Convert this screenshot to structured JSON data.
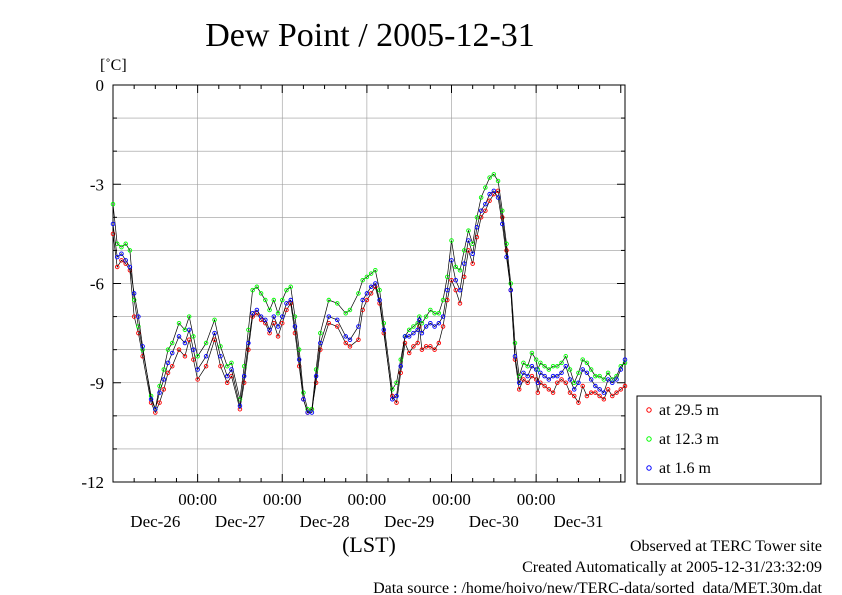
{
  "chart_data": {
    "type": "line",
    "title": "Dew Point / 2005-12-31",
    "ylabel": "[˚C]",
    "xlabel": "(LST)",
    "ylim": [
      -12,
      0
    ],
    "yticks": [
      0,
      -3,
      -6,
      -9,
      -12
    ],
    "xlim": [
      0,
      6.05
    ],
    "time_tick_label": "00:00",
    "time_ticks": [
      1,
      2,
      3,
      4,
      5
    ],
    "day_labels": [
      "Dec-26",
      "Dec-27",
      "Dec-28",
      "Dec-29",
      "Dec-30",
      "Dec-31"
    ],
    "day_label_positions": [
      0.5,
      1.5,
      2.5,
      3.5,
      4.5,
      5.5
    ],
    "grid": true,
    "legend_position": "bottom-right",
    "series": [
      {
        "name": "at 29.5 m",
        "color": "#ff0000",
        "x": [
          0.0,
          0.05,
          0.1,
          0.15,
          0.2,
          0.25,
          0.3,
          0.35,
          0.45,
          0.5,
          0.55,
          0.6,
          0.65,
          0.7,
          0.78,
          0.85,
          0.9,
          0.95,
          1.0,
          1.1,
          1.2,
          1.27,
          1.35,
          1.4,
          1.5,
          1.55,
          1.6,
          1.65,
          1.7,
          1.75,
          1.8,
          1.85,
          1.9,
          1.95,
          2.0,
          2.05,
          2.1,
          2.15,
          2.2,
          2.25,
          2.3,
          2.35,
          2.4,
          2.45,
          2.55,
          2.65,
          2.75,
          2.8,
          2.9,
          2.95,
          3.0,
          3.05,
          3.1,
          3.15,
          3.2,
          3.3,
          3.35,
          3.4,
          3.45,
          3.5,
          3.55,
          3.6,
          3.62,
          3.65,
          3.7,
          3.75,
          3.8,
          3.85,
          3.9,
          3.95,
          4.0,
          4.05,
          4.1,
          4.15,
          4.2,
          4.25,
          4.3,
          4.35,
          4.4,
          4.45,
          4.5,
          4.55,
          4.6,
          4.65,
          4.7,
          4.75,
          4.8,
          4.85,
          4.9,
          4.95,
          5.0,
          5.02,
          5.05,
          5.1,
          5.15,
          5.2,
          5.25,
          5.3,
          5.35,
          5.4,
          5.45,
          5.5,
          5.55,
          5.6,
          5.65,
          5.7,
          5.75,
          5.8,
          5.85,
          5.9,
          5.95,
          6.0,
          6.05
        ],
        "y": [
          -4.5,
          -5.5,
          -5.3,
          -5.4,
          -5.6,
          -7.0,
          -7.5,
          -8.2,
          -9.6,
          -9.9,
          -9.6,
          -9.2,
          -8.7,
          -8.5,
          -8.0,
          -8.2,
          -7.7,
          -8.3,
          -8.9,
          -8.5,
          -7.7,
          -8.5,
          -9.0,
          -8.8,
          -9.8,
          -9.0,
          -8.0,
          -7.0,
          -6.9,
          -7.1,
          -7.2,
          -7.5,
          -7.2,
          -7.6,
          -7.2,
          -6.8,
          -6.6,
          -7.5,
          -8.5,
          -9.5,
          -9.9,
          -9.8,
          -9.0,
          -8.0,
          -7.2,
          -7.3,
          -7.8,
          -7.9,
          -7.7,
          -6.8,
          -6.5,
          -6.3,
          -6.1,
          -6.6,
          -7.5,
          -9.4,
          -9.6,
          -8.7,
          -7.8,
          -8.1,
          -7.9,
          -7.8,
          -7.3,
          -8.0,
          -7.9,
          -7.9,
          -8.0,
          -7.8,
          -7.3,
          -6.5,
          -5.9,
          -6.2,
          -6.6,
          -5.8,
          -5.0,
          -5.4,
          -4.6,
          -4.0,
          -3.8,
          -3.5,
          -3.3,
          -3.2,
          -4.0,
          -5.0,
          -6.2,
          -8.3,
          -9.2,
          -8.9,
          -9.0,
          -8.8,
          -8.9,
          -9.3,
          -9.0,
          -9.1,
          -9.2,
          -9.3,
          -9.0,
          -8.9,
          -9.0,
          -9.3,
          -9.4,
          -9.6,
          -9.1,
          -9.4,
          -9.3,
          -9.3,
          -9.4,
          -9.5,
          -9.2,
          -9.4,
          -9.3,
          -9.2,
          -9.1
        ]
      },
      {
        "name": "at 12.3 m",
        "color": "#00ff00",
        "x": [
          0.0,
          0.05,
          0.1,
          0.15,
          0.2,
          0.25,
          0.3,
          0.35,
          0.45,
          0.5,
          0.55,
          0.6,
          0.65,
          0.7,
          0.78,
          0.85,
          0.9,
          0.95,
          1.0,
          1.1,
          1.2,
          1.27,
          1.35,
          1.4,
          1.5,
          1.55,
          1.6,
          1.65,
          1.7,
          1.75,
          1.8,
          1.85,
          1.9,
          1.95,
          2.0,
          2.05,
          2.1,
          2.15,
          2.2,
          2.25,
          2.3,
          2.35,
          2.4,
          2.45,
          2.55,
          2.65,
          2.75,
          2.8,
          2.9,
          2.95,
          3.0,
          3.05,
          3.1,
          3.15,
          3.2,
          3.3,
          3.35,
          3.4,
          3.45,
          3.5,
          3.55,
          3.6,
          3.62,
          3.65,
          3.7,
          3.75,
          3.8,
          3.85,
          3.9,
          3.95,
          4.0,
          4.05,
          4.1,
          4.15,
          4.2,
          4.25,
          4.3,
          4.35,
          4.4,
          4.45,
          4.5,
          4.55,
          4.6,
          4.65,
          4.7,
          4.75,
          4.8,
          4.85,
          4.9,
          4.95,
          5.0,
          5.02,
          5.05,
          5.1,
          5.15,
          5.2,
          5.25,
          5.3,
          5.35,
          5.4,
          5.45,
          5.5,
          5.55,
          5.6,
          5.65,
          5.7,
          5.75,
          5.8,
          5.85,
          5.9,
          5.95,
          6.0,
          6.05
        ],
        "y": [
          -3.6,
          -4.8,
          -4.9,
          -4.8,
          -5.0,
          -6.5,
          -7.3,
          -8.0,
          -9.4,
          -9.8,
          -9.1,
          -8.6,
          -8.0,
          -7.8,
          -7.2,
          -7.4,
          -7.0,
          -7.6,
          -8.2,
          -7.8,
          -7.1,
          -7.9,
          -8.5,
          -8.4,
          -9.5,
          -8.5,
          -7.4,
          -6.2,
          -6.1,
          -6.3,
          -6.5,
          -6.8,
          -6.5,
          -6.9,
          -6.5,
          -6.2,
          -6.1,
          -7.0,
          -8.0,
          -9.3,
          -9.8,
          -9.8,
          -8.6,
          -7.5,
          -6.5,
          -6.6,
          -6.9,
          -6.8,
          -6.3,
          -5.9,
          -5.8,
          -5.7,
          -5.6,
          -6.2,
          -7.2,
          -9.2,
          -9.0,
          -8.3,
          -7.6,
          -7.4,
          -7.3,
          -7.2,
          -7.0,
          -7.2,
          -7.0,
          -6.8,
          -6.9,
          -6.9,
          -6.5,
          -5.8,
          -4.7,
          -5.5,
          -5.6,
          -5.0,
          -4.4,
          -4.8,
          -4.0,
          -3.4,
          -3.1,
          -2.8,
          -2.7,
          -2.9,
          -3.8,
          -4.8,
          -6.0,
          -7.8,
          -8.8,
          -8.4,
          -8.5,
          -8.1,
          -8.3,
          -8.6,
          -8.4,
          -8.5,
          -8.6,
          -8.5,
          -8.5,
          -8.4,
          -8.2,
          -8.6,
          -9.0,
          -8.7,
          -8.3,
          -8.4,
          -8.6,
          -8.8,
          -8.8,
          -8.9,
          -8.7,
          -8.9,
          -8.8,
          -8.5,
          -8.4
        ]
      },
      {
        "name": "at 1.6 m",
        "color": "#0000ff",
        "x": [
          0.0,
          0.05,
          0.1,
          0.15,
          0.2,
          0.25,
          0.3,
          0.35,
          0.45,
          0.5,
          0.55,
          0.6,
          0.65,
          0.7,
          0.78,
          0.85,
          0.9,
          0.95,
          1.0,
          1.1,
          1.2,
          1.27,
          1.35,
          1.4,
          1.5,
          1.55,
          1.6,
          1.65,
          1.7,
          1.75,
          1.8,
          1.85,
          1.9,
          1.95,
          2.0,
          2.05,
          2.1,
          2.15,
          2.2,
          2.25,
          2.3,
          2.35,
          2.4,
          2.45,
          2.55,
          2.65,
          2.75,
          2.8,
          2.9,
          2.95,
          3.0,
          3.05,
          3.1,
          3.15,
          3.2,
          3.3,
          3.35,
          3.4,
          3.45,
          3.5,
          3.55,
          3.6,
          3.62,
          3.65,
          3.7,
          3.75,
          3.8,
          3.85,
          3.9,
          3.95,
          4.0,
          4.05,
          4.1,
          4.15,
          4.2,
          4.25,
          4.3,
          4.35,
          4.4,
          4.45,
          4.5,
          4.55,
          4.6,
          4.65,
          4.7,
          4.75,
          4.8,
          4.85,
          4.9,
          4.95,
          5.0,
          5.02,
          5.05,
          5.1,
          5.15,
          5.2,
          5.25,
          5.3,
          5.35,
          5.4,
          5.45,
          5.5,
          5.55,
          5.6,
          5.65,
          5.7,
          5.75,
          5.8,
          5.85,
          5.9,
          5.95,
          6.0,
          6.05
        ],
        "y": [
          -4.2,
          -5.2,
          -5.1,
          -5.3,
          -5.5,
          -6.3,
          -7.0,
          -7.9,
          -9.5,
          -9.8,
          -9.3,
          -8.9,
          -8.4,
          -8.1,
          -7.6,
          -7.8,
          -7.4,
          -8.0,
          -8.6,
          -8.2,
          -7.5,
          -8.2,
          -8.8,
          -8.6,
          -9.7,
          -8.8,
          -7.8,
          -6.9,
          -6.8,
          -7.0,
          -7.1,
          -7.4,
          -7.0,
          -7.3,
          -7.0,
          -6.6,
          -6.5,
          -7.3,
          -8.3,
          -9.5,
          -9.9,
          -9.9,
          -8.8,
          -7.8,
          -7.0,
          -7.1,
          -7.6,
          -7.7,
          -7.3,
          -6.5,
          -6.3,
          -6.1,
          -6.0,
          -6.5,
          -7.4,
          -9.5,
          -9.4,
          -8.5,
          -7.6,
          -7.6,
          -7.5,
          -7.4,
          -7.1,
          -7.5,
          -7.3,
          -7.2,
          -7.3,
          -7.2,
          -7.0,
          -6.2,
          -5.3,
          -5.9,
          -6.2,
          -5.4,
          -4.7,
          -5.1,
          -4.3,
          -3.8,
          -3.6,
          -3.3,
          -3.2,
          -3.4,
          -4.2,
          -5.2,
          -6.2,
          -8.2,
          -9.0,
          -8.7,
          -8.8,
          -8.5,
          -8.6,
          -9.0,
          -8.7,
          -8.8,
          -8.9,
          -8.8,
          -8.8,
          -8.7,
          -8.5,
          -8.9,
          -9.2,
          -9.0,
          -8.6,
          -8.7,
          -8.9,
          -9.1,
          -9.2,
          -9.3,
          -8.9,
          -9.0,
          -8.9,
          -8.6,
          -8.3
        ]
      }
    ]
  },
  "footer": {
    "site": "Observed at TERC Tower site",
    "created": "Created Automatically at 2005-12-31/23:32:09",
    "source": "Data source : /home/hoivo/new/TERC-data/sorted  data/MET.30m.dat"
  }
}
